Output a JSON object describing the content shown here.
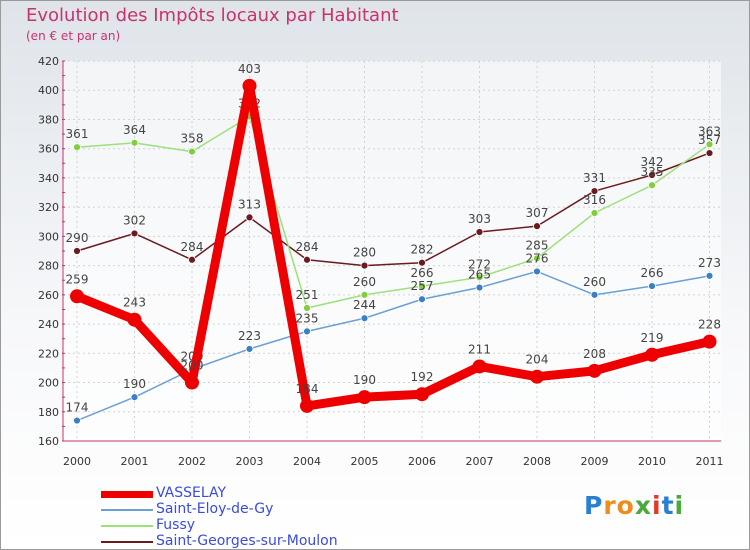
{
  "header": {
    "title": "Evolution des Impôts locaux par Habitant",
    "subtitle": "(en € et par an)"
  },
  "logo": {
    "text": "Proxiti",
    "letters": [
      "P",
      "r",
      "o",
      "x",
      "i",
      "t",
      "i"
    ],
    "colors": [
      "#2a7fd1",
      "#f08c1e",
      "#f08c1e",
      "#49a93a",
      "#e03a2a",
      "#2a7fd1",
      "#49a93a"
    ]
  },
  "chart_data": {
    "type": "line",
    "x": [
      "2000",
      "2001",
      "2002",
      "2003",
      "2004",
      "2005",
      "2006",
      "2007",
      "2008",
      "2009",
      "2010",
      "2011"
    ],
    "ylim": [
      160,
      420
    ],
    "yticks": [
      160,
      180,
      200,
      220,
      240,
      260,
      280,
      300,
      320,
      340,
      360,
      380,
      400,
      420
    ],
    "grid": true,
    "series": [
      {
        "name": "Saint-Georges-sur-Moulon",
        "color": "#6b1b1f",
        "point": "#6b1b1f",
        "values": [
          290,
          302,
          284,
          313,
          284,
          280,
          282,
          303,
          307,
          331,
          342,
          357
        ],
        "labels": [
          "290",
          "302",
          "284",
          "313",
          "284",
          "280",
          "282",
          "303",
          "307",
          "331",
          "342",
          "357"
        ]
      },
      {
        "name": "Fussy",
        "color": "#9ee07a",
        "point": "#7fcf3e",
        "values": [
          361,
          364,
          358,
          382,
          251,
          260,
          266,
          272,
          285,
          316,
          335,
          363
        ],
        "labels": [
          "361",
          "364",
          "358",
          "382",
          "251",
          "260",
          "266",
          "272",
          "285",
          "316",
          "335",
          "363"
        ]
      },
      {
        "name": "Saint-Eloy-de-Gy",
        "color": "#6aa0d6",
        "point": "#3b7fc4",
        "values": [
          174,
          190,
          209,
          223,
          235,
          244,
          257,
          265,
          276,
          260,
          266,
          273
        ],
        "labels": [
          "174",
          "190",
          "209",
          "223",
          "235",
          "244",
          "257",
          "265",
          "276",
          "260",
          "266",
          "273"
        ]
      },
      {
        "name": "VASSELAY",
        "color": "#ee0000",
        "point": "#ee0000",
        "values": [
          259,
          243,
          200,
          403,
          184,
          190,
          192,
          211,
          204,
          208,
          219,
          228
        ],
        "labels": [
          "259",
          "243",
          "200",
          "403",
          "184",
          "190",
          "192",
          "211",
          "204",
          "208",
          "219",
          "228"
        ]
      }
    ],
    "legend": [
      "VASSELAY",
      "Saint-Eloy-de-Gy",
      "Fussy",
      "Saint-Georges-sur-Moulon"
    ]
  }
}
